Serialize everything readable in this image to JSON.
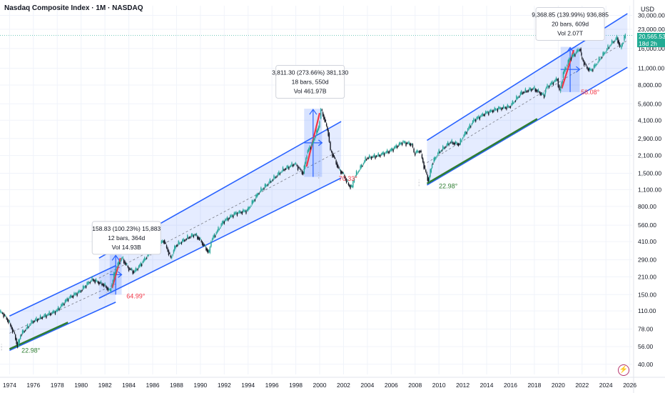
{
  "header": {
    "title": "Nasdaq Composite Index · 1M · NASDAQ",
    "currency": "USD"
  },
  "price_badge": {
    "price": "20,565.53",
    "countdown": "18d 2h"
  },
  "colors": {
    "channel_line": "#2962ff",
    "channel_fill": "#2962ff",
    "up_candle": "#26a69a",
    "down_candle": "#131722",
    "angle_green": "#2e7d32",
    "angle_red": "#f23645",
    "price_line": "#22ab94",
    "logo": "#b7356e"
  },
  "chart_data": {
    "type": "line",
    "title": "Nasdaq Composite Index · 1M · NASDAQ",
    "scale": "log",
    "ylim": [
      33,
      36000
    ],
    "xlim": [
      1973.2,
      2026.2
    ],
    "yticks": [
      {
        "label": "40.00",
        "value": 40
      },
      {
        "label": "56.00",
        "value": 56
      },
      {
        "label": "78.00",
        "value": 78
      },
      {
        "label": "110.00",
        "value": 110
      },
      {
        "label": "150.00",
        "value": 150
      },
      {
        "label": "210.00",
        "value": 210
      },
      {
        "label": "290.00",
        "value": 290
      },
      {
        "label": "410.00",
        "value": 410
      },
      {
        "label": "560.00",
        "value": 560
      },
      {
        "label": "800.00",
        "value": 800
      },
      {
        "label": "1,100.00",
        "value": 1100
      },
      {
        "label": "1,500.00",
        "value": 1500
      },
      {
        "label": "2,100.00",
        "value": 2100
      },
      {
        "label": "2,900.00",
        "value": 2900
      },
      {
        "label": "4,100.00",
        "value": 4100
      },
      {
        "label": "5,600.00",
        "value": 5600
      },
      {
        "label": "8,000.00",
        "value": 8000
      },
      {
        "label": "11,000.00",
        "value": 11000
      },
      {
        "label": "16,000.00",
        "value": 16000
      },
      {
        "label": "23,000.00",
        "value": 23000
      },
      {
        "label": "30,000.00",
        "value": 30000
      }
    ],
    "xticks": [
      "1974",
      "1976",
      "1978",
      "1980",
      "1982",
      "1984",
      "1986",
      "1988",
      "1990",
      "1992",
      "1994",
      "1996",
      "1998",
      "2000",
      "2002",
      "2004",
      "2006",
      "2008",
      "2010",
      "2012",
      "2014",
      "2016",
      "2018",
      "2020",
      "2022",
      "2024",
      "2026"
    ],
    "x": [
      1973.0,
      1973.5,
      1974.0,
      1974.5,
      1974.75,
      1975.0,
      1976.0,
      1977.0,
      1978.0,
      1979.0,
      1980.0,
      1980.5,
      1981.0,
      1982.0,
      1982.5,
      1983.0,
      1983.5,
      1984.0,
      1984.5,
      1985.0,
      1986.0,
      1987.0,
      1987.6,
      1988.0,
      1989.0,
      1989.6,
      1990.0,
      1990.8,
      1991.0,
      1992.0,
      1993.0,
      1994.0,
      1995.0,
      1996.0,
      1997.0,
      1998.0,
      1998.7,
      1999.0,
      1999.5,
      2000.0,
      2000.2,
      2000.5,
      2000.8,
      2001.0,
      2001.3,
      2001.7,
      2002.0,
      2002.5,
      2002.8,
      2003.0,
      2004.0,
      2005.0,
      2006.0,
      2007.0,
      2007.8,
      2008.0,
      2008.5,
      2008.9,
      2009.2,
      2009.5,
      2010.0,
      2011.0,
      2011.8,
      2012.0,
      2013.0,
      2014.0,
      2015.0,
      2016.0,
      2017.0,
      2018.0,
      2018.9,
      2019.0,
      2020.0,
      2020.2,
      2020.5,
      2021.0,
      2021.9,
      2022.0,
      2022.5,
      2022.8,
      2023.0,
      2024.0,
      2024.5,
      2025.0,
      2025.3,
      2025.7
    ],
    "series": [
      {
        "values": [
          110,
          105,
          90,
          70,
          56,
          70,
          90,
          100,
          110,
          140,
          160,
          180,
          200,
          180,
          160,
          250,
          300,
          250,
          230,
          260,
          350,
          420,
          300,
          380,
          440,
          470,
          430,
          330,
          420,
          600,
          700,
          740,
          1050,
          1300,
          1600,
          1800,
          1500,
          2200,
          2700,
          3600,
          5000,
          4100,
          3200,
          2300,
          2000,
          1600,
          1500,
          1200,
          1150,
          1400,
          2000,
          2100,
          2300,
          2700,
          2600,
          2200,
          2300,
          1600,
          1300,
          1800,
          2200,
          2700,
          2600,
          2900,
          4100,
          4700,
          5100,
          5300,
          6900,
          7500,
          6500,
          7500,
          9000,
          7000,
          10000,
          13000,
          16000,
          13500,
          11000,
          10500,
          11000,
          15000,
          17500,
          19500,
          16000,
          20565
        ]
      }
    ],
    "channels": [
      {
        "x": [
          1974.0,
          1982.9
        ],
        "lower": [
          52,
          130
        ],
        "upper": [
          100,
          260
        ]
      },
      {
        "x": [
          1981.5,
          2001.8
        ],
        "lower": [
          140,
          1370
        ],
        "upper": [
          300,
          4000
        ]
      },
      {
        "x": [
          2009.0,
          2025.8
        ],
        "lower": [
          1200,
          11200
        ],
        "upper": [
          2800,
          31000
        ]
      }
    ],
    "annotations": [
      {
        "text": "22.98°"
      },
      {
        "text": "64.99°"
      },
      {
        "text": "70.33°"
      },
      {
        "text": "22.98°"
      },
      {
        "text": "58.08°"
      }
    ],
    "measure_boxes": [
      {
        "line1": "158.83 (100.23%) 15,883",
        "line2": "12 bars, 364d",
        "line3": "Vol 14.93B"
      },
      {
        "line1": "3,811.30 (273.66%) 381,130",
        "line2": "18 bars, 550d",
        "line3": "Vol 461.97B"
      },
      {
        "line1": "9,368.85 (139.99%) 936,885",
        "line2": "20 bars, 609d",
        "line3": "Vol 2.07T"
      }
    ]
  }
}
